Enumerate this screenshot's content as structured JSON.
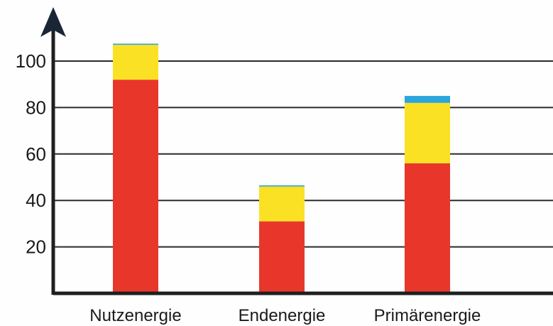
{
  "chart_data": {
    "type": "bar",
    "stacked": true,
    "title": "",
    "xlabel": "",
    "ylabel": "",
    "categories": [
      "Nutzenergie",
      "Endenergie",
      "Primärenergie"
    ],
    "series": [
      {
        "color": "#e8372a",
        "values": [
          92,
          31,
          56
        ]
      },
      {
        "color": "#fbe124",
        "values": [
          15,
          15,
          26
        ]
      },
      {
        "color": "#2aa6dc",
        "values": [
          0.5,
          0.5,
          3
        ]
      }
    ],
    "yticks": [
      20,
      40,
      60,
      80,
      100
    ],
    "ylim": [
      0,
      120
    ],
    "grid": true,
    "legend": "none"
  }
}
